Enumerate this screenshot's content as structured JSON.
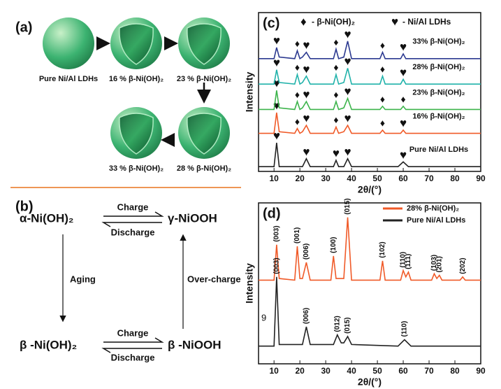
{
  "panel_a": {
    "label": "(a)",
    "samples": [
      "Pure Ni/Al LDHs",
      "16 % β-Ni(OH)₂",
      "23 % β-Ni(OH)₂",
      "28 % β-Ni(OH)₂",
      "33 % β-Ni(OH)₂"
    ]
  },
  "panel_b": {
    "label": "(b)",
    "alpha": "α-Ni(OH)₂",
    "gamma": "γ-NiOOH",
    "beta_hydroxide": "β -Ni(OH)₂",
    "beta_oxyhydroxide": "β -NiOOH",
    "top_forward": "Charge",
    "top_back": "Discharge",
    "bottom_forward": "Charge",
    "bottom_back": "Discharge",
    "left": "Aging",
    "right": "Over-charge"
  },
  "chart_data": [
    {
      "type": "line",
      "label": "(c)",
      "xlabel": "2θ/(°)",
      "ylabel": "Intensity",
      "xlim": [
        4,
        90
      ],
      "xticks": [
        10,
        20,
        30,
        40,
        50,
        60,
        70,
        80,
        90
      ],
      "ylim": [
        0,
        100
      ],
      "legend": [
        {
          "symbol": "♦",
          "text": "- β-Ni(OH)₂"
        },
        {
          "symbol": "♥",
          "text": "- Ni/Al LDHs"
        }
      ],
      "series": [
        {
          "name": "Pure Ni/Al LDHs",
          "color": "#222222",
          "x": [
            4,
            10,
            11,
            12,
            21,
            22.5,
            24,
            33,
            34,
            35,
            37,
            38.5,
            40,
            58,
            60,
            62,
            90
          ],
          "values": [
            3,
            3,
            18,
            3,
            3,
            8,
            3,
            3,
            7,
            3,
            3,
            8,
            3,
            3,
            6,
            3,
            3
          ],
          "hearts": [
            11,
            22.5,
            34,
            38.5,
            60
          ],
          "diamonds": []
        },
        {
          "name": "16% β-Ni(OH)₂",
          "color": "#f05a28",
          "x": [
            4,
            10,
            11,
            12,
            18,
            19,
            20,
            21,
            22.5,
            24,
            33,
            34,
            35,
            37,
            38.5,
            40,
            51,
            52,
            53,
            59,
            60,
            61,
            90
          ],
          "values": [
            24,
            24,
            37,
            25,
            24,
            27,
            24,
            25,
            29,
            24,
            24,
            28,
            24,
            25,
            29,
            24,
            24,
            26,
            24,
            24,
            26,
            24,
            24
          ],
          "hearts": [
            11,
            22.5,
            38.5,
            60
          ],
          "diamonds": [
            19,
            34,
            52
          ]
        },
        {
          "name": "23% β-Ni(OH)₂",
          "color": "#3cb44b",
          "x": [
            4,
            10,
            11,
            12,
            18,
            19,
            20,
            21,
            22.5,
            24,
            33,
            34,
            35,
            37,
            38.5,
            40,
            51,
            52,
            53,
            59,
            60,
            61,
            90
          ],
          "values": [
            39,
            39,
            51,
            40,
            39,
            44,
            39,
            40,
            44,
            39,
            39,
            44,
            39,
            40,
            46,
            39,
            39,
            41,
            39,
            39,
            41,
            39,
            39
          ],
          "hearts": [
            11,
            22.5,
            38.5
          ],
          "diamonds": [
            19,
            34,
            52,
            60
          ]
        },
        {
          "name": "28% β-Ni(OH)₂",
          "color": "#20b2aa",
          "x": [
            4,
            10,
            11,
            12,
            18,
            19,
            20,
            21,
            22.5,
            24,
            33,
            34,
            35,
            37,
            38.5,
            40,
            51,
            52,
            53,
            59,
            60,
            61,
            90
          ],
          "values": [
            55,
            55,
            64,
            56,
            55,
            61,
            55,
            56,
            60,
            55,
            55,
            61,
            55,
            56,
            65,
            55,
            55,
            60,
            55,
            55,
            58,
            55,
            55
          ],
          "hearts": [
            11,
            22.5,
            38.5,
            60
          ],
          "diamonds": [
            19,
            34,
            52
          ]
        },
        {
          "name": "33% β-Ni(OH)₂",
          "color": "#2b3990",
          "x": [
            4,
            10,
            11,
            12,
            18,
            19,
            20,
            21,
            22.5,
            24,
            33,
            34,
            35,
            37,
            38.5,
            40,
            51,
            52,
            53,
            59,
            60,
            61,
            90
          ],
          "values": [
            71,
            71,
            78,
            72,
            71,
            76,
            71,
            72,
            75,
            71,
            71,
            77,
            71,
            72,
            82,
            71,
            71,
            75,
            71,
            71,
            74,
            71,
            71
          ],
          "hearts": [
            11,
            22.5,
            38.5,
            60
          ],
          "diamonds": [
            19,
            34,
            52
          ]
        }
      ]
    },
    {
      "type": "line",
      "label": "(d)",
      "xlabel": "2θ/(°)",
      "ylabel": "Intensity",
      "stray_text": "9",
      "xlim": [
        4,
        90
      ],
      "xticks": [
        10,
        20,
        30,
        40,
        50,
        60,
        70,
        80,
        90
      ],
      "ylim": [
        0,
        100
      ],
      "series": [
        {
          "name": "28% β-Ni(OH)₂",
          "color": "#f05a28",
          "x": [
            4,
            10,
            11,
            12,
            18,
            19,
            20,
            21,
            22.5,
            24,
            32,
            33,
            34,
            37,
            38.5,
            40,
            51,
            52,
            53,
            59,
            60,
            61,
            62,
            63,
            71,
            72,
            73,
            74,
            75,
            82,
            83,
            84,
            90
          ],
          "values": [
            52,
            52,
            74,
            53,
            52,
            73,
            53,
            53,
            63,
            52,
            52,
            67,
            53,
            53,
            91,
            52,
            52,
            64,
            52,
            52,
            58,
            54,
            57,
            52,
            52,
            56,
            53,
            55,
            52,
            52,
            54,
            52,
            52
          ],
          "annotations": [
            {
              "x": 11,
              "label": "(003)"
            },
            {
              "x": 19,
              "label": "(001)"
            },
            {
              "x": 22.5,
              "label": "(006)"
            },
            {
              "x": 33,
              "label": "(100)"
            },
            {
              "x": 38.5,
              "label": "(015)"
            },
            {
              "x": 52,
              "label": "(102)"
            },
            {
              "x": 60,
              "label": "(110)"
            },
            {
              "x": 62,
              "label": "(111)"
            },
            {
              "x": 72,
              "label": "(103)"
            },
            {
              "x": 74,
              "label": "(201)"
            },
            {
              "x": 83,
              "label": "(202)"
            }
          ]
        },
        {
          "name": "Pure Ni/Al LDHs",
          "color": "#222222",
          "x": [
            4,
            10,
            11,
            12,
            21,
            22.5,
            24,
            33,
            34.5,
            36,
            37,
            38.5,
            40,
            58,
            60.5,
            63,
            90
          ],
          "values": [
            11,
            11,
            54,
            12,
            12,
            23,
            12,
            12,
            18,
            13,
            13,
            17,
            12,
            11,
            15,
            11,
            11
          ],
          "annotations": [
            {
              "x": 11,
              "label": "(003)"
            },
            {
              "x": 22.5,
              "label": "(006)"
            },
            {
              "x": 34.5,
              "label": "(012)"
            },
            {
              "x": 38.5,
              "label": "(015)"
            },
            {
              "x": 60.5,
              "label": "(110)"
            }
          ]
        }
      ]
    }
  ]
}
